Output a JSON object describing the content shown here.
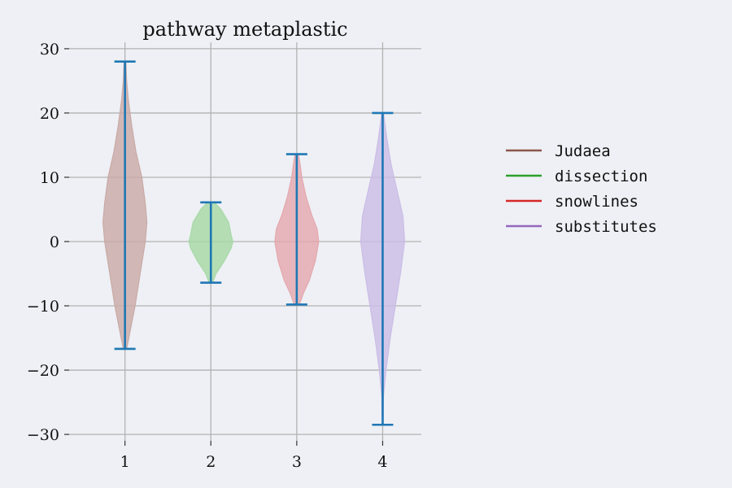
{
  "chart_data": {
    "type": "violin",
    "title": "pathway metaplastic",
    "xlabel": "",
    "ylabel": "",
    "x_ticks": [
      "1",
      "2",
      "3",
      "4"
    ],
    "y_ticks": [
      30,
      20,
      10,
      0,
      -10,
      -20,
      -30
    ],
    "y_tick_labels": [
      "30",
      "20",
      "10",
      "0",
      "−10",
      "−20",
      "−30"
    ],
    "ylim": [
      -31,
      31
    ],
    "xlim": [
      0.35,
      4.45
    ],
    "grid": true,
    "legend_position": "right",
    "series": [
      {
        "name": "Judaea",
        "position": 1,
        "color": "#8c564b",
        "fill": "#c9aaa6",
        "min": -16.7,
        "max": 28.0,
        "density": [
          [
            -16.7,
            0.02
          ],
          [
            -14,
            0.06
          ],
          [
            -10,
            0.12
          ],
          [
            -5,
            0.18
          ],
          [
            0,
            0.24
          ],
          [
            3,
            0.26
          ],
          [
            6,
            0.24
          ],
          [
            10,
            0.2
          ],
          [
            14,
            0.13
          ],
          [
            18,
            0.08
          ],
          [
            22,
            0.04
          ],
          [
            25,
            0.02
          ],
          [
            28,
            0.01
          ]
        ]
      },
      {
        "name": "dissection",
        "position": 2,
        "color": "#2ca02c",
        "fill": "#a6d8a4",
        "min": -6.4,
        "max": 6.1,
        "density": [
          [
            -6.4,
            0.02
          ],
          [
            -5,
            0.06
          ],
          [
            -3,
            0.16
          ],
          [
            -1,
            0.24
          ],
          [
            0,
            0.26
          ],
          [
            1,
            0.24
          ],
          [
            3,
            0.21
          ],
          [
            5,
            0.12
          ],
          [
            6.1,
            0.04
          ]
        ]
      },
      {
        "name": "snowlines",
        "position": 3,
        "color": "#d62728",
        "fill": "#e4a8ae",
        "min": -9.8,
        "max": 13.6,
        "density": [
          [
            -9.8,
            0.03
          ],
          [
            -8,
            0.08
          ],
          [
            -6,
            0.15
          ],
          [
            -3,
            0.22
          ],
          [
            0,
            0.26
          ],
          [
            2,
            0.24
          ],
          [
            4,
            0.18
          ],
          [
            7,
            0.11
          ],
          [
            10,
            0.06
          ],
          [
            12,
            0.04
          ],
          [
            13.6,
            0.02
          ]
        ]
      },
      {
        "name": "substitutes",
        "position": 4,
        "color": "#9467bd",
        "fill": "#cbbde6",
        "min": -28.5,
        "max": 20.0,
        "density": [
          [
            -28.5,
            0.005
          ],
          [
            -24,
            0.01
          ],
          [
            -20,
            0.04
          ],
          [
            -15,
            0.09
          ],
          [
            -10,
            0.15
          ],
          [
            -5,
            0.21
          ],
          [
            0,
            0.26
          ],
          [
            4,
            0.24
          ],
          [
            8,
            0.17
          ],
          [
            12,
            0.1
          ],
          [
            16,
            0.05
          ],
          [
            20,
            0.01
          ]
        ]
      }
    ],
    "whisker_color": "#1f77b4",
    "grid_color": "#b3b3b3"
  }
}
